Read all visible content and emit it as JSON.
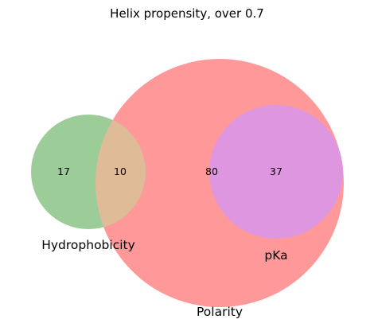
{
  "figure": {
    "title": "Helix propensity, over 0.7"
  },
  "chart_data": {
    "type": "venn",
    "title": "Helix propensity, over 0.7",
    "sets": [
      {
        "name": "Hydrophobicity",
        "color": "#9ccc98"
      },
      {
        "name": "Polarity",
        "color": "#ff9999"
      },
      {
        "name": "pKa",
        "color": "#df96e1"
      }
    ],
    "regions": [
      {
        "sets": [
          "Hydrophobicity"
        ],
        "count": "17",
        "color": "#9ccc98"
      },
      {
        "sets": [
          "Hydrophobicity",
          "Polarity"
        ],
        "count": "10",
        "color": "#e0bb98"
      },
      {
        "sets": [
          "Polarity"
        ],
        "count": "80",
        "color": "#ff9999"
      },
      {
        "sets": [
          "Polarity",
          "pKa"
        ],
        "count": "37",
        "color": "#df96e1"
      }
    ]
  }
}
